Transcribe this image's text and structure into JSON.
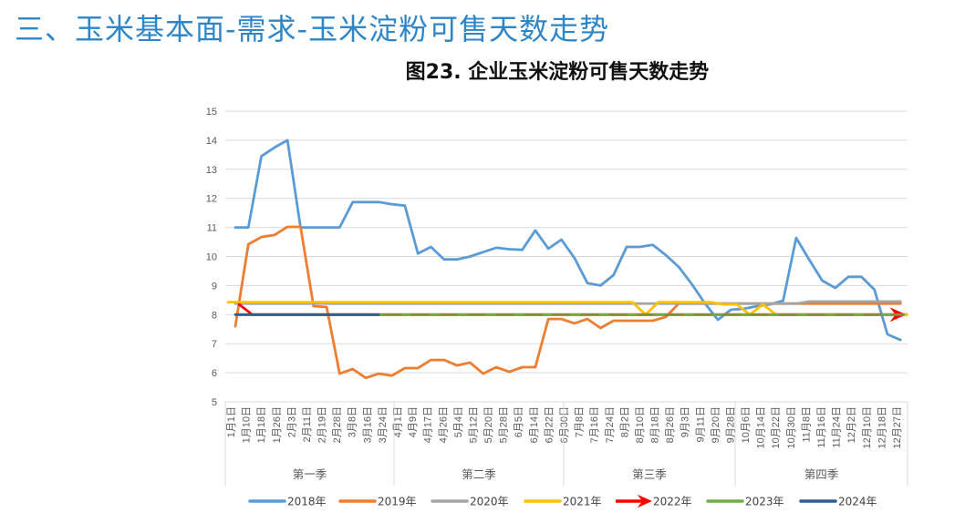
{
  "header": {
    "section_title": "三、玉米基本面-需求-玉米淀粉可售天数走势"
  },
  "chart_data": {
    "type": "line",
    "title": "图23. 企业玉米淀粉可售天数走势",
    "xlabel": "",
    "ylabel": "",
    "ylim": [
      5,
      15
    ],
    "yticks": [
      5,
      6,
      7,
      8,
      9,
      10,
      11,
      12,
      13,
      14,
      15
    ],
    "grid": true,
    "legend_position": "bottom",
    "x_note": "weekly data points (week index 1-52), date axis",
    "x_tick_labels": [
      "1月1日",
      "1月10日",
      "1月18日",
      "1月26日",
      "2月3日",
      "2月11日",
      "2月19日",
      "2月28日",
      "3月8日",
      "3月16日",
      "3月24日",
      "4月1日",
      "4月9日",
      "4月17日",
      "4月26日",
      "5月4日",
      "5月12日",
      "5月20日",
      "5月28日",
      "6月5日",
      "6月14日",
      "6月22日",
      "6月30日",
      "7月8日",
      "7月16日",
      "7月24日",
      "8月2日",
      "8月10日",
      "8月18日",
      "8月26日",
      "9月3日",
      "9月11日",
      "9月20日",
      "9月28日",
      "10月6日",
      "10月14日",
      "10月22日",
      "10月30日",
      "11月8日",
      "11月16日",
      "11月24日",
      "12月2日",
      "12月10日",
      "12月18日",
      "12月27日"
    ],
    "quarters": [
      {
        "label": "第一季"
      },
      {
        "label": "第二季"
      },
      {
        "label": "第三季"
      },
      {
        "label": "第四季"
      }
    ],
    "series": [
      {
        "name": "2018年",
        "color": "#5B9BD5",
        "x_offset": 0,
        "values": [
          11.0,
          11.0,
          13.45,
          13.75,
          14.0,
          11.0,
          11.0,
          11.0,
          11.0,
          11.87,
          11.87,
          11.87,
          11.8,
          11.75,
          10.1,
          10.33,
          9.9,
          9.9,
          10.0,
          10.15,
          10.3,
          10.25,
          10.23,
          10.9,
          10.27,
          10.58,
          9.95,
          9.08,
          9.0,
          9.36,
          10.33,
          10.33,
          10.4,
          10.05,
          9.64,
          9.05,
          8.39,
          7.82,
          8.17,
          8.2,
          8.29,
          8.35,
          8.48,
          10.64,
          9.89,
          9.17,
          8.92,
          9.3,
          9.3,
          8.86,
          7.32,
          7.13
        ]
      },
      {
        "name": "2019年",
        "color": "#ED7D31",
        "x_offset": 0,
        "values": [
          7.6,
          10.42,
          10.67,
          10.74,
          11.02,
          11.02,
          8.29,
          8.26,
          5.97,
          6.13,
          5.82,
          5.97,
          5.9,
          6.16,
          6.16,
          6.44,
          6.44,
          6.25,
          6.35,
          5.97,
          6.19,
          6.03,
          6.19,
          6.19,
          7.85,
          7.85,
          7.7,
          7.85,
          7.54,
          7.79,
          7.79,
          7.79,
          7.79,
          7.92,
          8.38,
          8.38,
          8.38,
          8.38,
          8.38,
          8.38,
          8.38,
          8.38,
          8.38,
          8.38,
          8.38,
          8.38,
          8.38,
          8.38,
          8.38,
          8.38,
          8.38,
          8.38
        ]
      },
      {
        "name": "2020年",
        "color": "#A5A5A5",
        "x_offset": 0,
        "values": [
          8.38,
          8.38,
          8.38,
          8.38,
          8.38,
          8.38,
          8.38,
          8.38,
          8.38,
          8.38,
          8.38,
          8.38,
          8.38,
          8.38,
          8.38,
          8.38,
          8.38,
          8.38,
          8.38,
          8.38,
          8.38,
          8.38,
          8.38,
          8.38,
          8.38,
          8.38,
          8.38,
          8.38,
          8.38,
          8.38,
          8.38,
          8.38,
          8.38,
          8.38,
          8.38,
          8.38,
          8.38,
          8.38,
          8.38,
          8.38,
          8.38,
          8.38,
          8.38,
          8.38,
          8.45,
          8.45,
          8.45,
          8.45,
          8.45,
          8.45,
          8.45,
          8.45
        ]
      },
      {
        "name": "2021年",
        "color": "#FFC000",
        "x_offset": -0.55,
        "values": [
          8.43,
          8.43,
          8.43,
          8.43,
          8.43,
          8.43,
          8.43,
          8.43,
          8.43,
          8.43,
          8.43,
          8.43,
          8.43,
          8.43,
          8.43,
          8.43,
          8.43,
          8.43,
          8.43,
          8.43,
          8.43,
          8.43,
          8.43,
          8.43,
          8.43,
          8.43,
          8.43,
          8.43,
          8.43,
          8.43,
          8.43,
          8.43,
          8.0,
          8.43,
          8.43,
          8.43,
          8.43,
          8.43,
          8.35,
          8.35,
          8.0,
          8.35,
          8.0,
          8.0,
          8.0,
          8.0,
          8.0,
          8.0,
          8.0,
          8.0,
          8.0,
          8.0,
          8.0
        ]
      },
      {
        "name": "2022年",
        "color": "#FF0000",
        "x_offset": 0.3,
        "marker": "arrow",
        "values": [
          8.35,
          8.0,
          8.0,
          8.0,
          8.0,
          8.0,
          8.0,
          8.0,
          8.0,
          8.0,
          8.0,
          8.0,
          8.0,
          8.0,
          8.0,
          8.0,
          8.0,
          8.0,
          8.0,
          8.0,
          8.0,
          8.0,
          8.0,
          8.0,
          8.0,
          8.0,
          8.0,
          8.0,
          8.0,
          8.0,
          8.0,
          8.0,
          8.0,
          8.0,
          8.0,
          8.0,
          8.0,
          8.0,
          8.0,
          8.0,
          8.0,
          8.0,
          8.0,
          8.0,
          8.0,
          8.0,
          8.0,
          8.0,
          8.0,
          8.0,
          8.0,
          8.0
        ]
      },
      {
        "name": "2023年",
        "color": "#70AD47",
        "x_offset": 0.3,
        "values": [
          8.0,
          8.0,
          8.0,
          8.0,
          8.0,
          8.0,
          8.0,
          8.0,
          8.0,
          8.0,
          8.0,
          8.0,
          8.0,
          8.0,
          8.0,
          8.0,
          8.0,
          8.0,
          8.0,
          8.0,
          8.0,
          8.0,
          8.0,
          8.0,
          8.0,
          8.0,
          8.0,
          8.0,
          8.0,
          8.0,
          8.0,
          8.0,
          8.0,
          8.0,
          8.0,
          8.0,
          8.0,
          8.0,
          8.0,
          8.0,
          8.0,
          8.0,
          8.0,
          8.0,
          8.0,
          8.0,
          8.0,
          8.0,
          8.0,
          8.0,
          8.0,
          8.0
        ]
      },
      {
        "name": "2024年",
        "color": "#2E5E8E",
        "x_offset": 0,
        "values": [
          8.0,
          8.0,
          8.0,
          8.0,
          8.0,
          8.0,
          8.0,
          8.0,
          8.0,
          8.0,
          8.0,
          8.0
        ]
      }
    ]
  }
}
